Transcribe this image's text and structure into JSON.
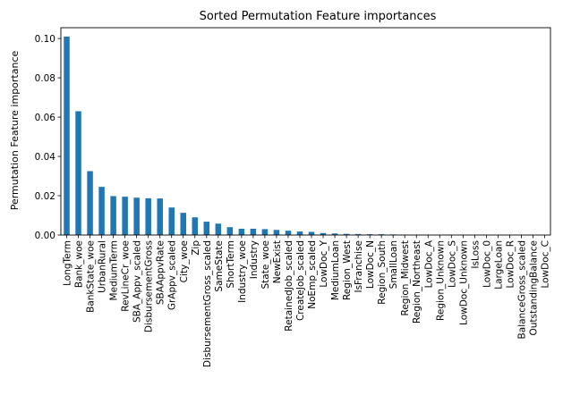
{
  "chart_data": {
    "type": "bar",
    "title": "Sorted Permutation Feature importances",
    "xlabel": "",
    "ylabel": "Permutation Feature importance",
    "ylim": [
      0,
      0.1055
    ],
    "yticks": [
      "0.00",
      "0.02",
      "0.04",
      "0.06",
      "0.08",
      "0.10"
    ],
    "grid": false,
    "bar_color": "#1f77b4",
    "categories": [
      "LongTerm",
      "Bank_woe",
      "BankState_woe",
      "UrbanRural",
      "MediumTerm",
      "RevLineCr_woe",
      "SBA_Appv_scaled",
      "DisbursementGross",
      "SBAAppvRate",
      "GrAppv_scaled",
      "City_woe",
      "Zip",
      "DisbursementGross_scaled",
      "SameState",
      "ShortTerm",
      "Industry_woe",
      "Industry",
      "State_woe",
      "NewExist",
      "RetainedJob_scaled",
      "CreateJob_scaled",
      "NoEmp_scaled",
      "LowDoc_Y",
      "MediumLoan",
      "Region_West",
      "IsFranchise",
      "LowDoc_N",
      "Region_South",
      "SmallLoan",
      "Region_Midwest",
      "Region_Northeast",
      "LowDoc_A",
      "Region_Unknown",
      "LowDoc_S",
      "LowDoc_Unknown",
      "IsLoss",
      "LowDoc_0",
      "LargeLoan",
      "LowDoc_R",
      "BalanceGross_scaled",
      "OutstandingBalance",
      "LowDoc_C"
    ],
    "values": [
      0.101,
      0.063,
      0.0325,
      0.0245,
      0.0198,
      0.0195,
      0.019,
      0.0187,
      0.0186,
      0.014,
      0.0113,
      0.009,
      0.0068,
      0.0058,
      0.004,
      0.0032,
      0.0032,
      0.003,
      0.0026,
      0.0022,
      0.0018,
      0.0016,
      0.001,
      0.0008,
      0.0006,
      0.0005,
      0.0004,
      0.0004,
      0.0003,
      0.0001,
      0.0001,
      0.0001,
      0.0,
      0.0,
      0.0,
      0.0,
      0.0,
      0.0,
      0.0,
      0.0,
      0.0,
      0.0
    ]
  }
}
